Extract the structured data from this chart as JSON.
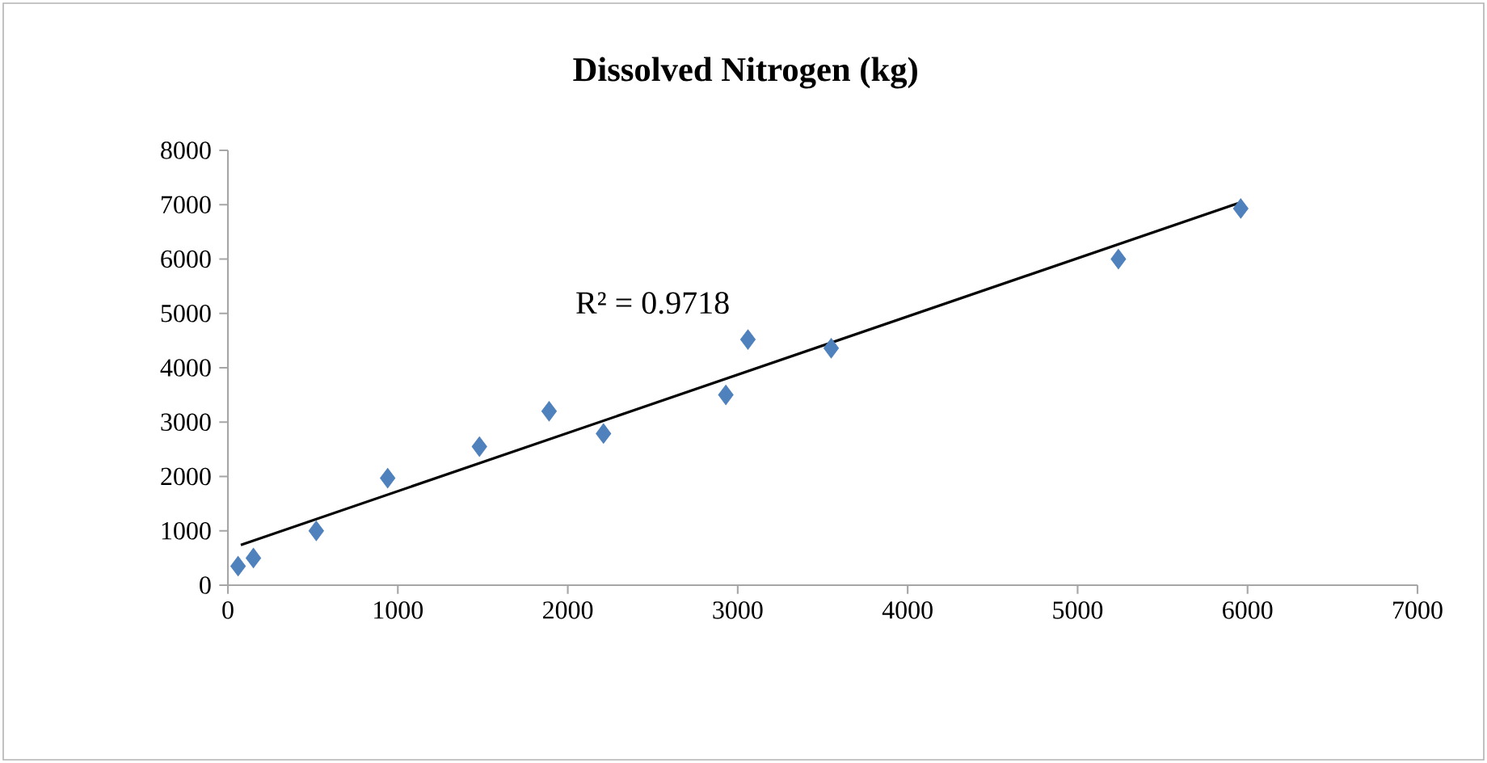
{
  "chart_data": {
    "type": "scatter",
    "title": "Dissolved Nitrogen (kg)",
    "xlim": [
      0,
      7000
    ],
    "xticks": [
      0,
      1000,
      2000,
      3000,
      4000,
      5000,
      6000,
      7000
    ],
    "ylim": [
      0,
      8000
    ],
    "yticks": [
      0,
      1000,
      2000,
      3000,
      4000,
      5000,
      6000,
      7000,
      8000
    ],
    "grid": false,
    "marker": "diamond",
    "annotations": [
      "R² = 0.9718"
    ],
    "series": [
      {
        "color": "#4f81bd",
        "x": [
          60,
          150,
          520,
          940,
          1480,
          1890,
          2210,
          2930,
          3060,
          3550,
          5240,
          5960
        ],
        "values": [
          350,
          500,
          1000,
          1970,
          2550,
          3200,
          2790,
          3500,
          4520,
          4360,
          6000,
          6930
        ]
      },
      {
        "type": "line",
        "color": "#000000",
        "marker": "none",
        "x": [
          76,
          5966
        ],
        "values": [
          740,
          7050
        ]
      }
    ]
  }
}
